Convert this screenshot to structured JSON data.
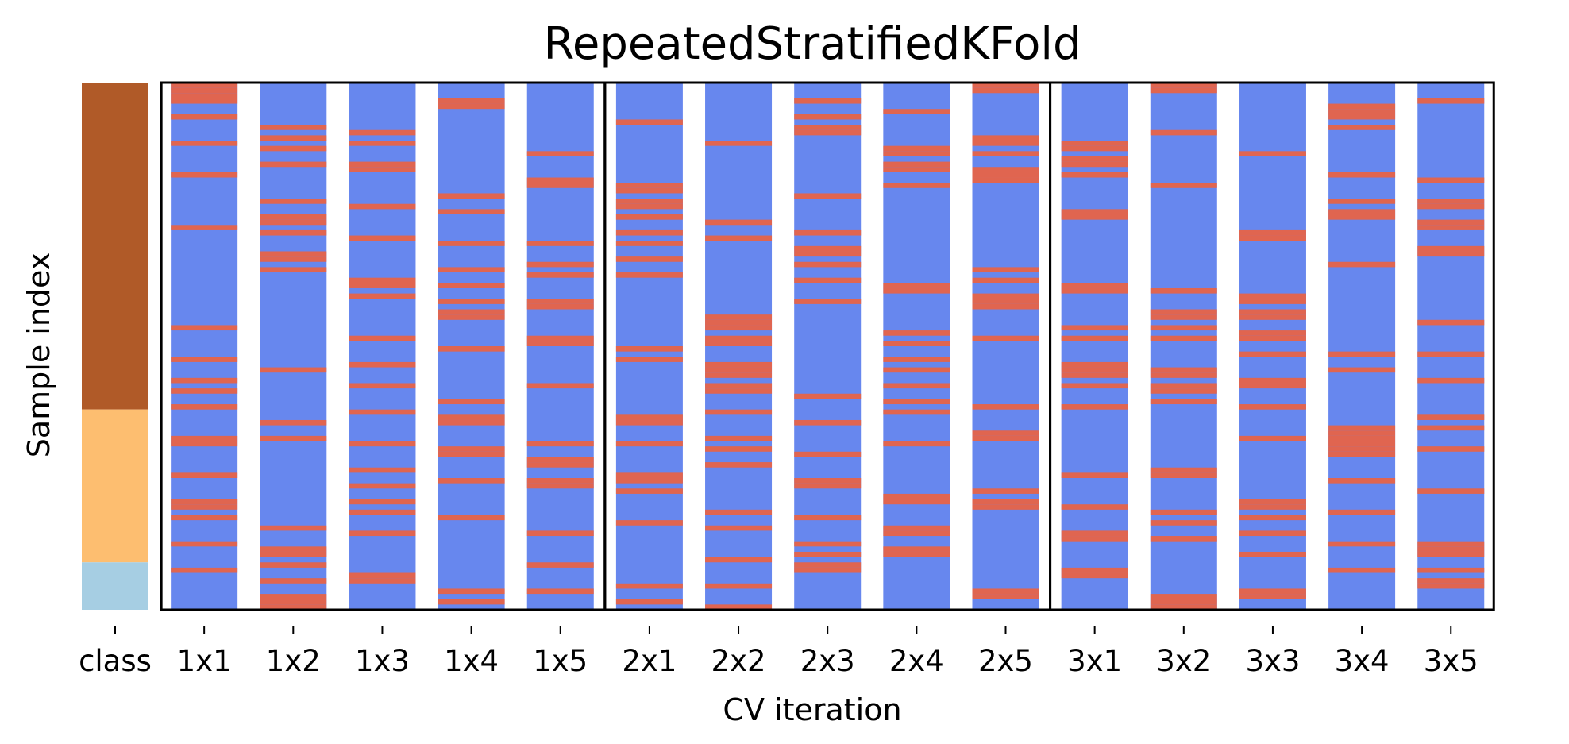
{
  "chart_data": {
    "type": "heatmap",
    "title": "RepeatedStratifiedKFold",
    "xlabel": "CV iteration",
    "ylabel": "Sample index",
    "tick_labels": [
      "class",
      "1x1",
      "1x2",
      "1x3",
      "1x4",
      "1x5",
      "2x1",
      "2x2",
      "2x3",
      "2x4",
      "2x5",
      "3x1",
      "3x2",
      "3x3",
      "3x4",
      "3x5"
    ],
    "n_samples": 100,
    "n_repeats": 3,
    "n_splits": 5,
    "legend": "none",
    "grid": false,
    "colors": {
      "train": "#6787ee",
      "test": "#e06550",
      "class_0": "#b05a28",
      "class_1": "#fdbe70",
      "class_2": "#a6cee3",
      "frame": "#000000"
    },
    "class_segments": [
      {
        "class": 0,
        "start": 0,
        "end": 62
      },
      {
        "class": 1,
        "start": 62,
        "end": 91
      },
      {
        "class": 2,
        "start": 91,
        "end": 100
      }
    ],
    "test_indices": [
      [
        0,
        1,
        2,
        3,
        6,
        11,
        17,
        27,
        46,
        52,
        56,
        58,
        61,
        67,
        68,
        74,
        79,
        80,
        82,
        87,
        92
      ],
      [
        8,
        10,
        12,
        15,
        22,
        25,
        26,
        28,
        32,
        33,
        35,
        54,
        64,
        67,
        84,
        88,
        89,
        91,
        94,
        97,
        98,
        99
      ],
      [
        9,
        11,
        15,
        16,
        23,
        29,
        37,
        38,
        40,
        48,
        53,
        57,
        62,
        68,
        73,
        76,
        79,
        81,
        85,
        93,
        94
      ],
      [
        3,
        4,
        21,
        24,
        30,
        35,
        38,
        41,
        43,
        44,
        50,
        60,
        63,
        64,
        69,
        70,
        75,
        82,
        96,
        98
      ],
      [
        13,
        18,
        19,
        30,
        34,
        36,
        41,
        42,
        48,
        49,
        57,
        68,
        71,
        72,
        75,
        76,
        85,
        91,
        96
      ],
      [
        7,
        19,
        20,
        22,
        23,
        25,
        28,
        30,
        33,
        36,
        50,
        52,
        63,
        64,
        68,
        74,
        75,
        77,
        83,
        95,
        98
      ],
      [
        11,
        26,
        29,
        44,
        45,
        46,
        48,
        49,
        53,
        54,
        55,
        57,
        58,
        62,
        67,
        69,
        72,
        81,
        84,
        90,
        95,
        99
      ],
      [
        3,
        6,
        8,
        9,
        21,
        28,
        31,
        32,
        34,
        37,
        41,
        59,
        64,
        70,
        75,
        76,
        82,
        87,
        89,
        91,
        92
      ],
      [
        5,
        12,
        13,
        15,
        16,
        19,
        38,
        39,
        47,
        49,
        52,
        54,
        57,
        60,
        62,
        68,
        78,
        79,
        84,
        85,
        88,
        89
      ],
      [
        0,
        1,
        10,
        11,
        13,
        16,
        17,
        18,
        35,
        37,
        40,
        41,
        42,
        48,
        61,
        66,
        67,
        77,
        79,
        80,
        96,
        97
      ],
      [
        11,
        12,
        14,
        15,
        17,
        24,
        25,
        38,
        39,
        46,
        48,
        53,
        54,
        55,
        57,
        61,
        74,
        80,
        85,
        86,
        92,
        93
      ],
      [
        0,
        1,
        9,
        19,
        39,
        43,
        44,
        46,
        48,
        54,
        55,
        57,
        58,
        60,
        73,
        74,
        81,
        83,
        86,
        97,
        98,
        99
      ],
      [
        13,
        28,
        29,
        40,
        41,
        43,
        44,
        47,
        48,
        51,
        56,
        57,
        61,
        67,
        79,
        80,
        82,
        85,
        89,
        96,
        97
      ],
      [
        4,
        5,
        6,
        8,
        17,
        22,
        24,
        25,
        34,
        51,
        54,
        65,
        66,
        67,
        68,
        69,
        70,
        75,
        81,
        87,
        92
      ],
      [
        3,
        18,
        22,
        23,
        26,
        27,
        31,
        32,
        45,
        51,
        56,
        63,
        65,
        69,
        77,
        87,
        88,
        89,
        92,
        94,
        95
      ]
    ]
  }
}
